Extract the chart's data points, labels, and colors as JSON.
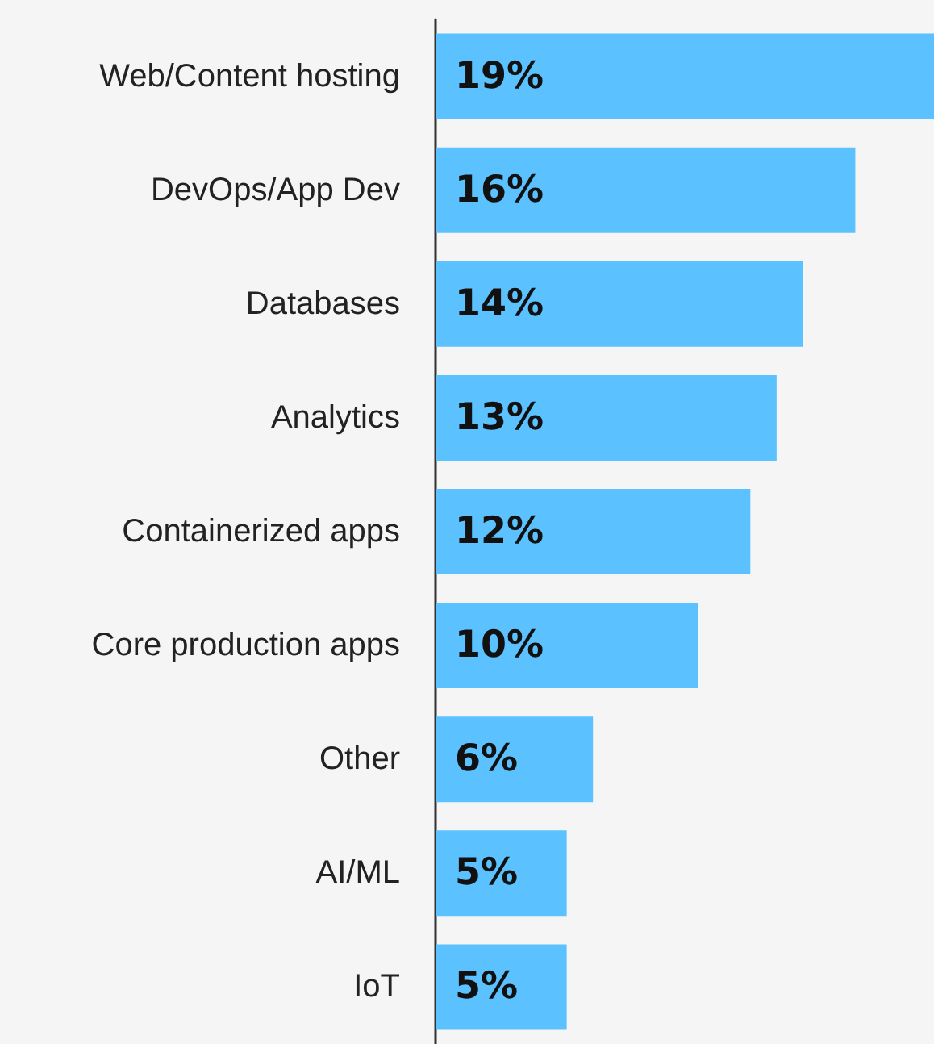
{
  "chart_data": {
    "type": "bar",
    "orientation": "horizontal",
    "categories": [
      "Web/Content hosting",
      "DevOps/App Dev",
      "Databases",
      "Analytics",
      "Containerized apps",
      "Core production apps",
      "Other",
      "AI/ML",
      "IoT"
    ],
    "values": [
      19,
      16,
      14,
      13,
      12,
      10,
      6,
      5,
      5
    ],
    "value_labels": [
      "19%",
      "16%",
      "14%",
      "13%",
      "12%",
      "10%",
      "6%",
      "5%",
      "5%"
    ],
    "color": "#5bc2ff"
  }
}
